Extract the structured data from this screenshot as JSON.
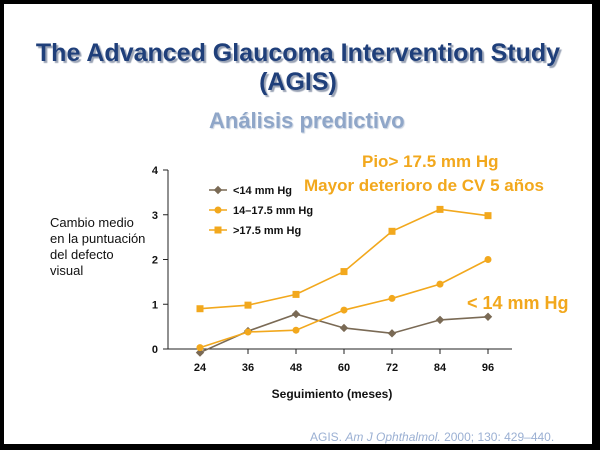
{
  "slide": {
    "title_line1": "The Advanced Glaucoma Intervention Study",
    "title_line2": "(AGIS)",
    "subtitle": "Análisis predictivo",
    "note_line1": "Pio> 17.5 mm Hg",
    "note_line2": "Mayor deterioro de CV 5 años",
    "note_low": "< 14 mm Hg",
    "citation_author": "AGIS.",
    "citation_journal": "Am J Ophthalmol.",
    "citation_ref": "2000; 130: 429–440."
  },
  "colors": {
    "title": "#1f3f7a",
    "accent_orange": "#f2a81d",
    "series_low": "#7a6a55",
    "subtitle": "#8fa6c8"
  },
  "chart_data": {
    "type": "line",
    "ylabel": "Cambio medio en la puntuación del defecto visual",
    "xlabel": "Seguimiento (meses)",
    "x": [
      24,
      36,
      48,
      60,
      72,
      84,
      96
    ],
    "ylim": [
      0,
      4
    ],
    "yticks": [
      0,
      1,
      2,
      3,
      4
    ],
    "legend_position": "top-left",
    "grid": false,
    "series": [
      {
        "name": "<14 mm Hg",
        "marker": "diamond",
        "color": "#7a6a55",
        "values": [
          -0.08,
          0.4,
          0.78,
          0.47,
          0.35,
          0.65,
          0.72
        ]
      },
      {
        "name": "14–17.5 mm Hg",
        "marker": "circle",
        "color": "#f2a81d",
        "values": [
          0.03,
          0.38,
          0.42,
          0.87,
          1.13,
          1.45,
          2.0
        ]
      },
      {
        "name": ">17.5 mm Hg",
        "marker": "square",
        "color": "#f2a81d",
        "values": [
          0.9,
          0.98,
          1.22,
          1.73,
          2.63,
          3.12,
          2.98
        ]
      }
    ]
  }
}
